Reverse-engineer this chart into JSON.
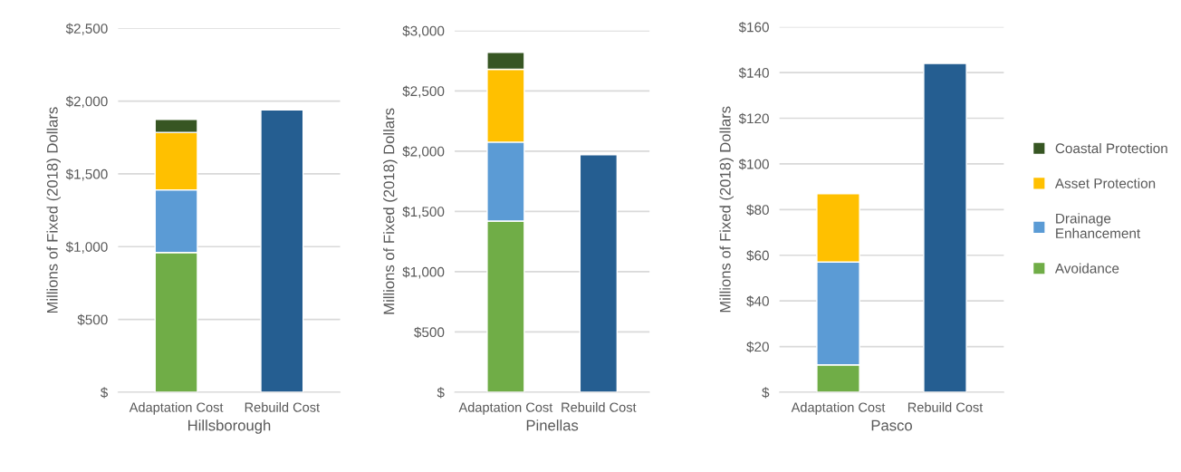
{
  "chart_data": [
    {
      "type": "bar",
      "stacked": true,
      "xlabel": "Hillsborough",
      "ylabel": "Millions of Fixed (2018) Dollars",
      "categories": [
        "Adaptation Cost",
        "Rebuild Cost"
      ],
      "ylim": [
        0,
        2500
      ],
      "yticks": [
        {
          "value": 0,
          "label": "$"
        },
        {
          "value": 500,
          "label": "$500"
        },
        {
          "value": 1000,
          "label": "$1,000"
        },
        {
          "value": 1500,
          "label": "$1,500"
        },
        {
          "value": 2000,
          "label": "$2,000"
        },
        {
          "value": 2500,
          "label": "$2,500"
        }
      ],
      "grid": "y",
      "legend": false,
      "series": [
        {
          "color": "#70ad47",
          "values": [
            960,
            null
          ]
        },
        {
          "color": "#5b9bd5",
          "values": [
            430,
            null
          ]
        },
        {
          "color": "#ffc000",
          "values": [
            395,
            null
          ]
        },
        {
          "color": "#375623",
          "values": [
            90,
            null
          ]
        },
        {
          "color": "#255e91",
          "values": [
            null,
            1940
          ]
        }
      ]
    },
    {
      "type": "bar",
      "stacked": true,
      "xlabel": "Pinellas",
      "ylabel": "Millions of Fixed (2018) Dollars",
      "categories": [
        "Adaptation Cost",
        "Rebuild Cost"
      ],
      "ylim": [
        0,
        3000
      ],
      "yticks": [
        {
          "value": 0,
          "label": "$"
        },
        {
          "value": 500,
          "label": "$500"
        },
        {
          "value": 1000,
          "label": "$1,000"
        },
        {
          "value": 1500,
          "label": "$1,500"
        },
        {
          "value": 2000,
          "label": "$2,000"
        },
        {
          "value": 2500,
          "label": "$2,500"
        },
        {
          "value": 3000,
          "label": "$3,000"
        }
      ],
      "grid": "y",
      "legend": false,
      "series": [
        {
          "color": "#70ad47",
          "values": [
            1420,
            null
          ]
        },
        {
          "color": "#5b9bd5",
          "values": [
            655,
            null
          ]
        },
        {
          "color": "#ffc000",
          "values": [
            605,
            null
          ]
        },
        {
          "color": "#375623",
          "values": [
            140,
            null
          ]
        },
        {
          "color": "#255e91",
          "values": [
            null,
            1970
          ]
        }
      ]
    },
    {
      "type": "bar",
      "stacked": true,
      "xlabel": "Pasco",
      "ylabel": "Millions of Fixed (2018) Dollars",
      "categories": [
        "Adaptation Cost",
        "Rebuild Cost"
      ],
      "ylim": [
        0,
        160
      ],
      "yticks": [
        {
          "value": 0,
          "label": "$"
        },
        {
          "value": 20,
          "label": "$20"
        },
        {
          "value": 40,
          "label": "$40"
        },
        {
          "value": 60,
          "label": "$60"
        },
        {
          "value": 80,
          "label": "$80"
        },
        {
          "value": 100,
          "label": "$100"
        },
        {
          "value": 120,
          "label": "$120"
        },
        {
          "value": 140,
          "label": "$140"
        },
        {
          "value": 160,
          "label": "$160"
        }
      ],
      "grid": "y",
      "legend": "right",
      "series": [
        {
          "name": "Avoidance",
          "color": "#70ad47",
          "values": [
            12,
            null
          ]
        },
        {
          "name": "Drainage\nEnhancement",
          "color": "#5b9bd5",
          "values": [
            45,
            null
          ]
        },
        {
          "name": "Asset Protection",
          "color": "#ffc000",
          "values": [
            30,
            null
          ]
        },
        {
          "name": "Coastal Protection",
          "color": "#375623",
          "values": [
            null,
            null
          ]
        },
        {
          "color": "#255e91",
          "values": [
            null,
            144
          ]
        }
      ]
    }
  ]
}
